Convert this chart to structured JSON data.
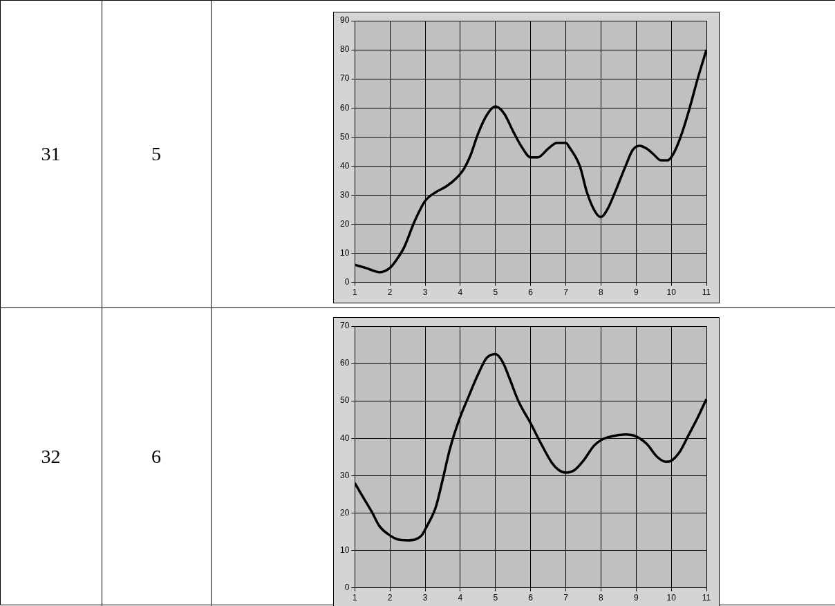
{
  "chart_data": [
    {
      "type": "line",
      "annotations": [
        "31",
        "5"
      ],
      "color": "#000000",
      "grid": true,
      "x": [
        1,
        1.3,
        1.7,
        2,
        2.2,
        2.4,
        2.7,
        3,
        3.3,
        3.6,
        3.9,
        4.1,
        4.3,
        4.5,
        4.75,
        5,
        5.25,
        5.5,
        5.75,
        6,
        6.2,
        6.5,
        6.75,
        7,
        7.1,
        7.4,
        7.6,
        7.85,
        8,
        8.2,
        8.4,
        8.7,
        8.9,
        9.1,
        9.3,
        9.5,
        9.7,
        9.9,
        10.05,
        10.25,
        10.5,
        10.75,
        11
      ],
      "values": [
        6,
        5,
        3.5,
        5,
        8,
        12,
        21,
        28,
        31,
        33,
        36,
        39,
        44,
        51,
        57.5,
        60.5,
        58,
        52,
        46.5,
        43,
        43,
        46,
        48,
        48,
        46.5,
        40,
        31,
        24,
        22.5,
        25.5,
        31,
        40,
        45.5,
        47,
        46,
        44,
        42,
        42,
        44,
        49.5,
        59,
        70,
        80
      ],
      "xlim": [
        1,
        11
      ],
      "xticks": [
        1,
        2,
        3,
        4,
        5,
        6,
        7,
        8,
        9,
        10,
        11
      ],
      "ylim": [
        0,
        90
      ],
      "yticks": [
        0,
        10,
        20,
        30,
        40,
        50,
        60,
        70,
        80,
        90
      ]
    },
    {
      "type": "line",
      "annotations": [
        "32",
        "6"
      ],
      "color": "#000000",
      "grid": true,
      "x": [
        1,
        1.25,
        1.5,
        1.7,
        2,
        2.2,
        2.5,
        2.9,
        3.05,
        3.3,
        3.5,
        3.7,
        3.95,
        4.25,
        4.5,
        4.75,
        5,
        5.2,
        5.4,
        5.65,
        6,
        6.3,
        6.6,
        6.8,
        7,
        7.25,
        7.5,
        7.8,
        8,
        8.3,
        8.7,
        9,
        9.3,
        9.6,
        9.85,
        10,
        10.25,
        10.5,
        10.75,
        11
      ],
      "values": [
        28,
        24,
        20,
        16.5,
        14,
        13,
        12.7,
        14,
        16.5,
        21.5,
        29,
        37,
        44.5,
        51.5,
        57,
        61.5,
        62.5,
        60.5,
        56,
        50,
        44,
        38.5,
        33.5,
        31.5,
        30.8,
        31.5,
        34,
        38,
        39.5,
        40.5,
        41,
        40.5,
        38.5,
        35,
        33.7,
        34,
        36.5,
        41,
        45.5,
        50.5
      ],
      "xlim": [
        1,
        11
      ],
      "xticks": [
        1,
        2,
        3,
        4,
        5,
        6,
        7,
        8,
        9,
        10,
        11
      ],
      "ylim": [
        0,
        70
      ],
      "yticks": [
        0,
        10,
        20,
        30,
        40,
        50,
        60,
        70
      ]
    }
  ]
}
